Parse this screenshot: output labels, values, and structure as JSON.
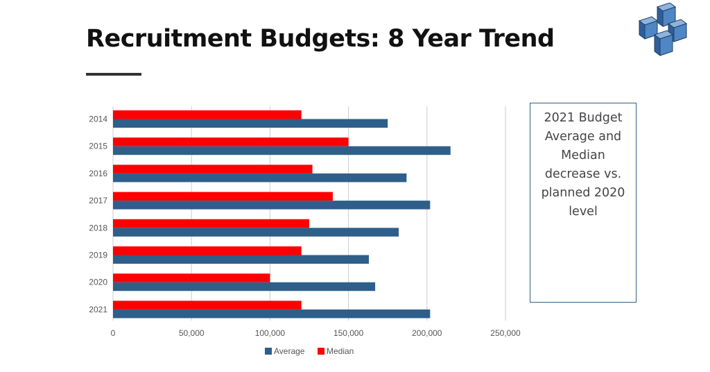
{
  "slide": {
    "title": "Recruitment Budgets: 8 Year Trend",
    "callout": "2021 Budget Average and Median decrease vs. planned 2020 level"
  },
  "colors": {
    "average": "#2e5f8a",
    "median": "#ff0000",
    "grid": "#cccccc",
    "tick_text": "#555555"
  },
  "chart_data": {
    "type": "bar",
    "orientation": "horizontal",
    "categories": [
      "2014",
      "2015",
      "2016",
      "2017",
      "2018",
      "2019",
      "2020",
      "2021"
    ],
    "series": [
      {
        "name": "Average",
        "values": [
          175000,
          215000,
          187000,
          202000,
          182000,
          163000,
          167000,
          202000
        ]
      },
      {
        "name": "Median",
        "values": [
          120000,
          150000,
          127000,
          140000,
          125000,
          120000,
          100000,
          120000
        ]
      }
    ],
    "xlim": [
      0,
      250000
    ],
    "xticks": [
      0,
      50000,
      100000,
      150000,
      200000,
      250000
    ],
    "xtick_labels": [
      "0",
      "50,000",
      "100,000",
      "150,000",
      "200,000",
      "250,000"
    ],
    "grid": true,
    "legend_position": "bottom"
  }
}
